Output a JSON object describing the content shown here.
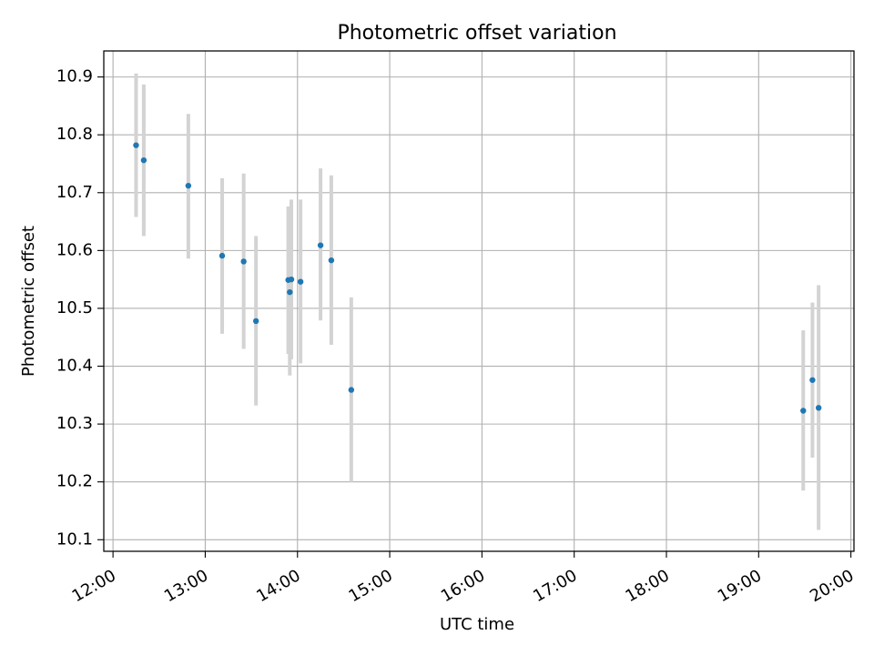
{
  "chart_data": {
    "type": "scatter",
    "title": "Photometric offset variation",
    "xlabel": "UTC time",
    "ylabel": "Photometric offset",
    "x_unit": "UTC hour",
    "xlim": [
      "11:54",
      "20:02"
    ],
    "ylim": [
      10.08,
      10.945
    ],
    "x_ticks": [
      "12:00",
      "13:00",
      "14:00",
      "15:00",
      "16:00",
      "17:00",
      "18:00",
      "19:00",
      "20:00"
    ],
    "y_ticks": [
      "10.1",
      "10.2",
      "10.3",
      "10.4",
      "10.5",
      "10.6",
      "10.7",
      "10.8",
      "10.9"
    ],
    "grid": true,
    "colors": {
      "points": "#1f77b4",
      "error_bars": "#d3d3d3",
      "grid": "#b0b0b0",
      "axes": "#000000"
    },
    "points": [
      {
        "x": "12:15",
        "y": 10.782,
        "ylow": 10.658,
        "yhigh": 10.906
      },
      {
        "x": "12:20",
        "y": 10.756,
        "ylow": 10.625,
        "yhigh": 10.887
      },
      {
        "x": "12:49",
        "y": 10.712,
        "ylow": 10.586,
        "yhigh": 10.836
      },
      {
        "x": "13:11",
        "y": 10.591,
        "ylow": 10.456,
        "yhigh": 10.725
      },
      {
        "x": "13:25",
        "y": 10.581,
        "ylow": 10.43,
        "yhigh": 10.733
      },
      {
        "x": "13:33",
        "y": 10.478,
        "ylow": 10.332,
        "yhigh": 10.625
      },
      {
        "x": "13:54",
        "y": 10.549,
        "ylow": 10.421,
        "yhigh": 10.676
      },
      {
        "x": "13:55",
        "y": 10.528,
        "ylow": 10.384,
        "yhigh": 10.672
      },
      {
        "x": "13:56",
        "y": 10.55,
        "ylow": 10.412,
        "yhigh": 10.688
      },
      {
        "x": "14:02",
        "y": 10.546,
        "ylow": 10.405,
        "yhigh": 10.688
      },
      {
        "x": "14:15",
        "y": 10.609,
        "ylow": 10.479,
        "yhigh": 10.742
      },
      {
        "x": "14:22",
        "y": 10.583,
        "ylow": 10.437,
        "yhigh": 10.73
      },
      {
        "x": "14:35",
        "y": 10.359,
        "ylow": 10.2,
        "yhigh": 10.519
      },
      {
        "x": "19:29",
        "y": 10.323,
        "ylow": 10.185,
        "yhigh": 10.462
      },
      {
        "x": "19:35",
        "y": 10.376,
        "ylow": 10.242,
        "yhigh": 10.51
      },
      {
        "x": "19:39",
        "y": 10.328,
        "ylow": 10.117,
        "yhigh": 10.54
      }
    ]
  }
}
